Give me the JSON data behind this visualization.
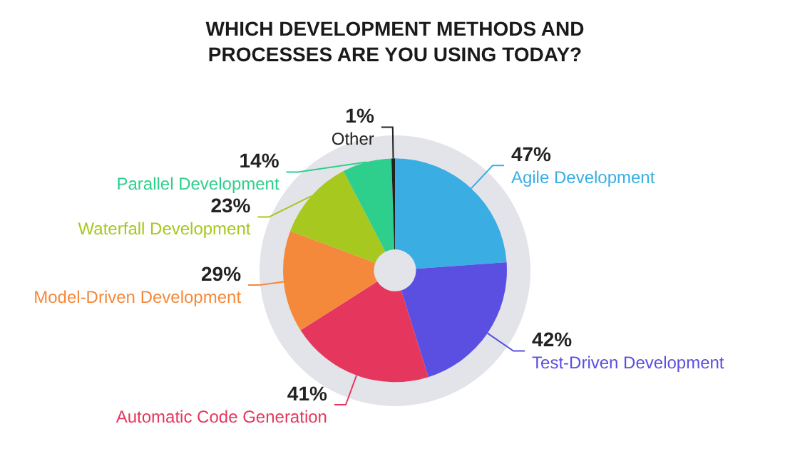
{
  "chart_data": {
    "type": "donut",
    "title": "WHICH DEVELOPMENT METHODS AND\nPROCESSES ARE YOU USING TODAY?",
    "categories": [
      "Agile Development",
      "Test-Driven Development",
      "Automatic Code Generation",
      "Model-Driven Development",
      "Waterfall Development",
      "Parallel Development",
      "Other"
    ],
    "values": [
      47,
      42,
      41,
      29,
      23,
      14,
      1
    ],
    "value_labels": [
      "47%",
      "42%",
      "41%",
      "29%",
      "23%",
      "14%",
      "1%"
    ],
    "colors": [
      "#3aaee3",
      "#5a4fe0",
      "#e5375d",
      "#f5893b",
      "#a6c81f",
      "#2ecf8c",
      "#222222"
    ],
    "legend": false
  }
}
